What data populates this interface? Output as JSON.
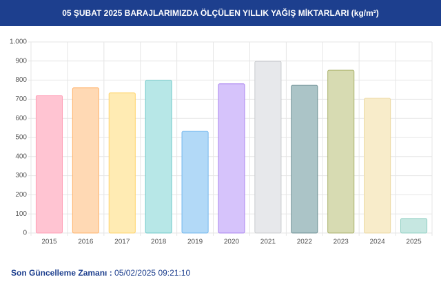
{
  "header": {
    "title": "05 ŞUBAT 2025 BARAJLARIMIZDA ÖLÇÜLEN YILLIK YAĞIŞ MİKTARLARI (kg/m²)"
  },
  "chart_data": {
    "type": "bar",
    "categories": [
      "2015",
      "2016",
      "2017",
      "2018",
      "2019",
      "2020",
      "2021",
      "2022",
      "2023",
      "2024",
      "2025"
    ],
    "values": [
      720,
      760,
      734,
      799,
      532,
      781,
      899,
      773,
      852,
      705,
      76
    ],
    "colors": [
      "#ffc4d2",
      "#ffd9b4",
      "#ffebb3",
      "#b7e7e7",
      "#b2d9f7",
      "#d6c3fb",
      "#e7e8eb",
      "#abc4c7",
      "#d7dbb2",
      "#f8ecca",
      "#c6e7e1"
    ],
    "border_colors": [
      "#ff9fb6",
      "#ffb36c",
      "#ffd46c",
      "#70caca",
      "#70b6ee",
      "#ab85f0",
      "#cacccf",
      "#6f9195",
      "#abb26d",
      "#ebd9a3",
      "#92d0c4"
    ],
    "ylim": [
      0,
      1000
    ],
    "yticks": [
      0,
      100,
      200,
      300,
      400,
      500,
      600,
      700,
      800,
      900,
      {
        "value": 1000,
        "label": "1.000"
      }
    ],
    "grid": true
  },
  "footer": {
    "label": "Son Güncelleme Zamanı :",
    "timestamp": "05/02/2025 09:21:10"
  }
}
